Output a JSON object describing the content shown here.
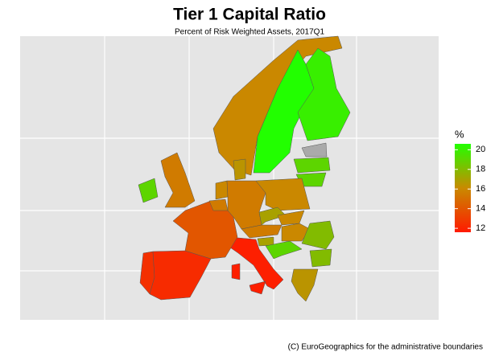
{
  "chart_data": {
    "type": "choropleth",
    "title": "Tier 1 Capital Ratio",
    "subtitle": "Percent of Risk Weighted Assets, 2017Q1",
    "caption": "(C) EuroGeographics for the administrative boundaries",
    "legend_title": "%",
    "values": [
      12.5,
      12.3,
      11.8,
      14.0,
      15.5,
      19.0,
      16.0,
      21.0,
      20.0,
      null,
      19.0,
      19.0,
      16.5,
      16.0,
      15.5,
      15.5,
      16.0,
      17.0,
      16.0,
      15.5,
      16.0,
      17.0,
      19.0,
      18.0,
      18.0,
      16.5
    ],
    "clim": [
      11.6,
      20.6
    ],
    "colors": [
      "#ff1a00",
      "#c98a00",
      "#22ff00"
    ],
    "na_color": "#aaaaaa",
    "legend_ticks": [
      12,
      14,
      16,
      18,
      20
    ]
  }
}
